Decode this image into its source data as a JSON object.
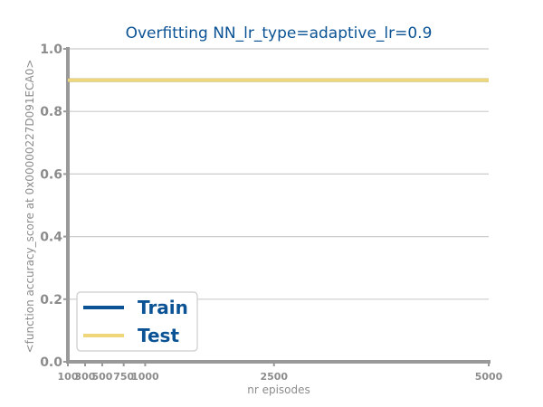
{
  "chart_data": {
    "type": "line",
    "title": "Overfitting NN_lr_type=adaptive_lr=0.9",
    "xlabel": "nr episodes",
    "ylabel": "<function accuracy_score at 0x00000227D091ECA0>",
    "x": [
      100,
      300,
      500,
      750,
      1000,
      2500,
      5000
    ],
    "xticks": [
      100,
      300,
      500,
      750,
      1000,
      2500,
      5000
    ],
    "yticks": [
      0.0,
      0.2,
      0.4,
      0.6,
      0.8,
      1.0
    ],
    "xlim": [
      100,
      5000
    ],
    "ylim": [
      0.0,
      1.0
    ],
    "grid": "horizontal",
    "legend_position": "lower-left",
    "series": [
      {
        "name": "Train",
        "color": "#0b5394",
        "values": [
          0.9,
          0.9,
          0.9,
          0.9,
          0.9,
          0.9,
          0.9
        ]
      },
      {
        "name": "Test",
        "color": "#f0d67a",
        "values": [
          0.9,
          0.9,
          0.9,
          0.9,
          0.9,
          0.9,
          0.9
        ]
      }
    ]
  }
}
